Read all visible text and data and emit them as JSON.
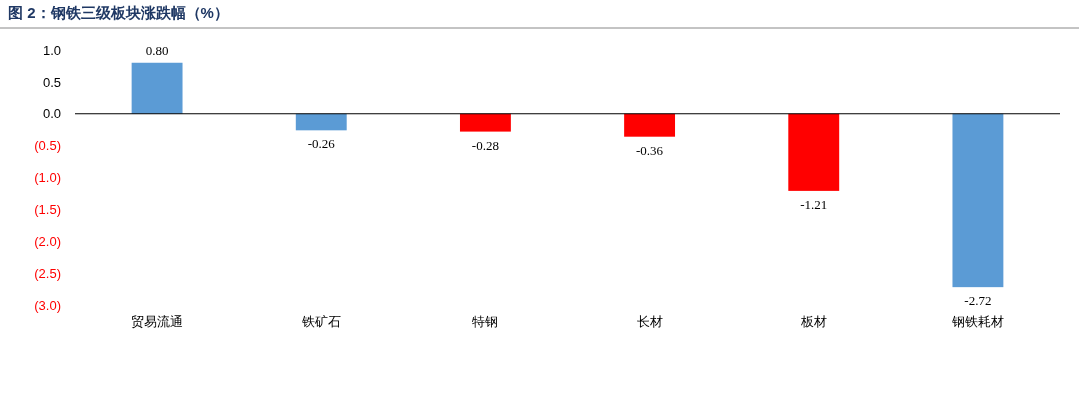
{
  "chart_data": {
    "type": "bar",
    "title": "图 2：钢铁三级板块涨跌幅（%）",
    "categories": [
      "贸易流通",
      "铁矿石",
      "特钢",
      "长材",
      "板材",
      "钢铁耗材"
    ],
    "values": [
      0.8,
      -0.26,
      -0.28,
      -0.36,
      -1.21,
      -2.72
    ],
    "colors": [
      "#5b9bd5",
      "#5b9bd5",
      "#ff0000",
      "#ff0000",
      "#ff0000",
      "#5b9bd5"
    ],
    "ylim": [
      -3.0,
      1.0
    ],
    "yticks": [
      {
        "value": 1.0,
        "label": "1.0"
      },
      {
        "value": 0.5,
        "label": "0.5"
      },
      {
        "value": 0,
        "label": "0.0"
      },
      {
        "value": -0.5,
        "label": "(0.5)"
      },
      {
        "value": -1.0,
        "label": "(1.0)"
      },
      {
        "value": -1.5,
        "label": "(1.5)"
      },
      {
        "value": -2.0,
        "label": "(2.0)"
      },
      {
        "value": -2.5,
        "label": "(2.5)"
      },
      {
        "value": -3.0,
        "label": "(3.0)"
      }
    ],
    "value_labels": [
      "0.80",
      "-0.26",
      "-0.28",
      "-0.36",
      "-1.21",
      "-2.72"
    ]
  }
}
